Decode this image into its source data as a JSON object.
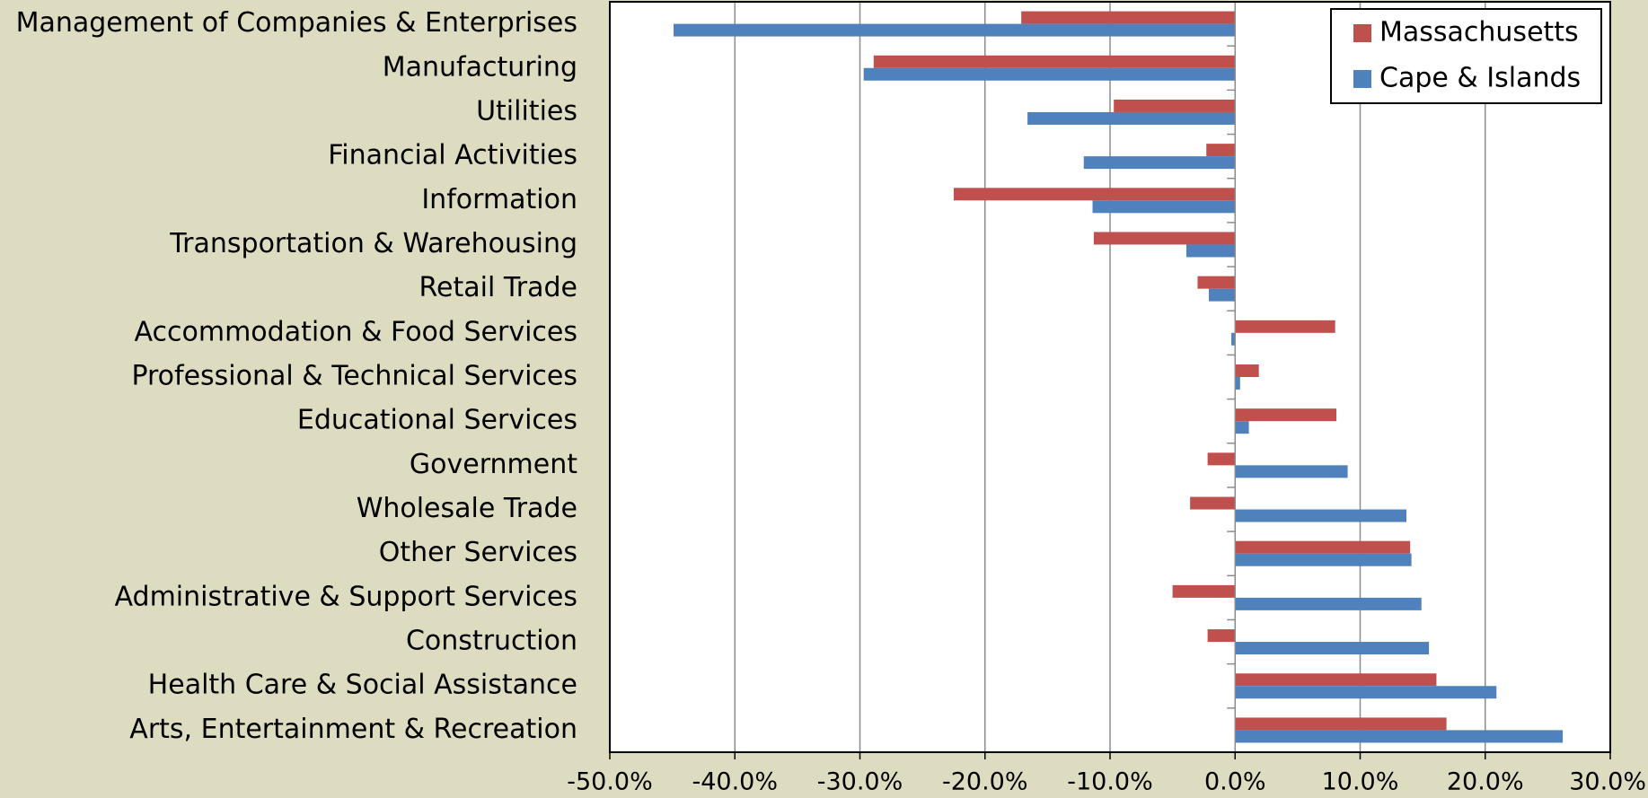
{
  "chart_data": {
    "type": "barh",
    "categories": [
      "Management of Companies & Enterprises",
      "Manufacturing",
      "Utilities",
      "Financial Activities",
      "Information",
      "Transportation & Warehousing",
      "Retail Trade",
      "Accommodation & Food Services",
      "Professional & Technical Services",
      "Educational Services",
      "Government",
      "Wholesale Trade",
      "Other Services",
      "Administrative & Support Services",
      "Construction",
      "Health Care & Social Assistance",
      "Arts, Entertainment & Recreation"
    ],
    "series": [
      {
        "name": "Massachusetts",
        "color": "#c0504d",
        "values": [
          -17.1,
          -28.9,
          -9.7,
          -2.3,
          -22.5,
          -11.3,
          -3.0,
          8.0,
          1.9,
          8.1,
          -2.2,
          -3.6,
          14.0,
          -5.0,
          -2.2,
          16.1,
          16.9
        ]
      },
      {
        "name": "Cape & Islands",
        "color": "#4f81bd",
        "values": [
          -44.9,
          -29.7,
          -16.6,
          -12.1,
          -11.4,
          -3.9,
          -2.1,
          -0.3,
          0.4,
          1.1,
          9.0,
          13.7,
          14.1,
          14.9,
          15.5,
          20.9,
          26.2
        ]
      }
    ],
    "xlim": [
      -50,
      30
    ],
    "xticks": [
      {
        "value": -50,
        "label": "-50.0%"
      },
      {
        "value": -40,
        "label": "-40.0%"
      },
      {
        "value": -30,
        "label": "-30.0%"
      },
      {
        "value": -20,
        "label": "-20.0%"
      },
      {
        "value": -10,
        "label": "-10.0%"
      },
      {
        "value": 0,
        "label": "0.0%"
      },
      {
        "value": 10,
        "label": "10.0%"
      },
      {
        "value": 20,
        "label": "20.0%"
      },
      {
        "value": 30,
        "label": "30.0%"
      }
    ],
    "grid": true,
    "legend": "upper right"
  }
}
